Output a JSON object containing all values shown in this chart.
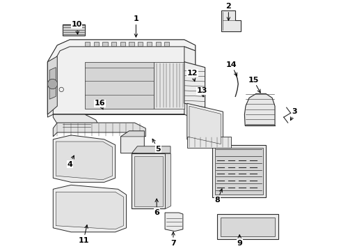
{
  "bg_color": "#ffffff",
  "line_color": "#2a2a2a",
  "label_color": "#000000",
  "figsize": [
    4.9,
    3.6
  ],
  "dpi": 100,
  "label_configs": {
    "1": {
      "lpos": [
        0.385,
        0.915
      ],
      "tpos": [
        0.385,
        0.84
      ],
      "fs": 8
    },
    "2": {
      "lpos": [
        0.72,
        0.96
      ],
      "tpos": [
        0.72,
        0.9
      ],
      "fs": 8
    },
    "3": {
      "lpos": [
        0.96,
        0.58
      ],
      "tpos": [
        0.94,
        0.54
      ],
      "fs": 8
    },
    "4": {
      "lpos": [
        0.145,
        0.39
      ],
      "tpos": [
        0.165,
        0.43
      ],
      "fs": 8
    },
    "5": {
      "lpos": [
        0.465,
        0.445
      ],
      "tpos": [
        0.44,
        0.49
      ],
      "fs": 8
    },
    "6": {
      "lpos": [
        0.46,
        0.215
      ],
      "tpos": [
        0.46,
        0.275
      ],
      "fs": 8
    },
    "7": {
      "lpos": [
        0.52,
        0.105
      ],
      "tpos": [
        0.52,
        0.155
      ],
      "fs": 8
    },
    "8": {
      "lpos": [
        0.68,
        0.26
      ],
      "tpos": [
        0.7,
        0.31
      ],
      "fs": 8
    },
    "9": {
      "lpos": [
        0.76,
        0.105
      ],
      "tpos": [
        0.76,
        0.145
      ],
      "fs": 8
    },
    "10": {
      "lpos": [
        0.17,
        0.895
      ],
      "tpos": [
        0.175,
        0.85
      ],
      "fs": 8
    },
    "11": {
      "lpos": [
        0.195,
        0.115
      ],
      "tpos": [
        0.21,
        0.18
      ],
      "fs": 8
    },
    "12": {
      "lpos": [
        0.59,
        0.72
      ],
      "tpos": [
        0.6,
        0.68
      ],
      "fs": 8
    },
    "13": {
      "lpos": [
        0.625,
        0.655
      ],
      "tpos": [
        0.63,
        0.625
      ],
      "fs": 8
    },
    "14": {
      "lpos": [
        0.73,
        0.75
      ],
      "tpos": [
        0.755,
        0.7
      ],
      "fs": 8
    },
    "15": {
      "lpos": [
        0.81,
        0.695
      ],
      "tpos": [
        0.84,
        0.64
      ],
      "fs": 8
    },
    "16": {
      "lpos": [
        0.255,
        0.61
      ],
      "tpos": [
        0.27,
        0.58
      ],
      "fs": 8
    }
  }
}
